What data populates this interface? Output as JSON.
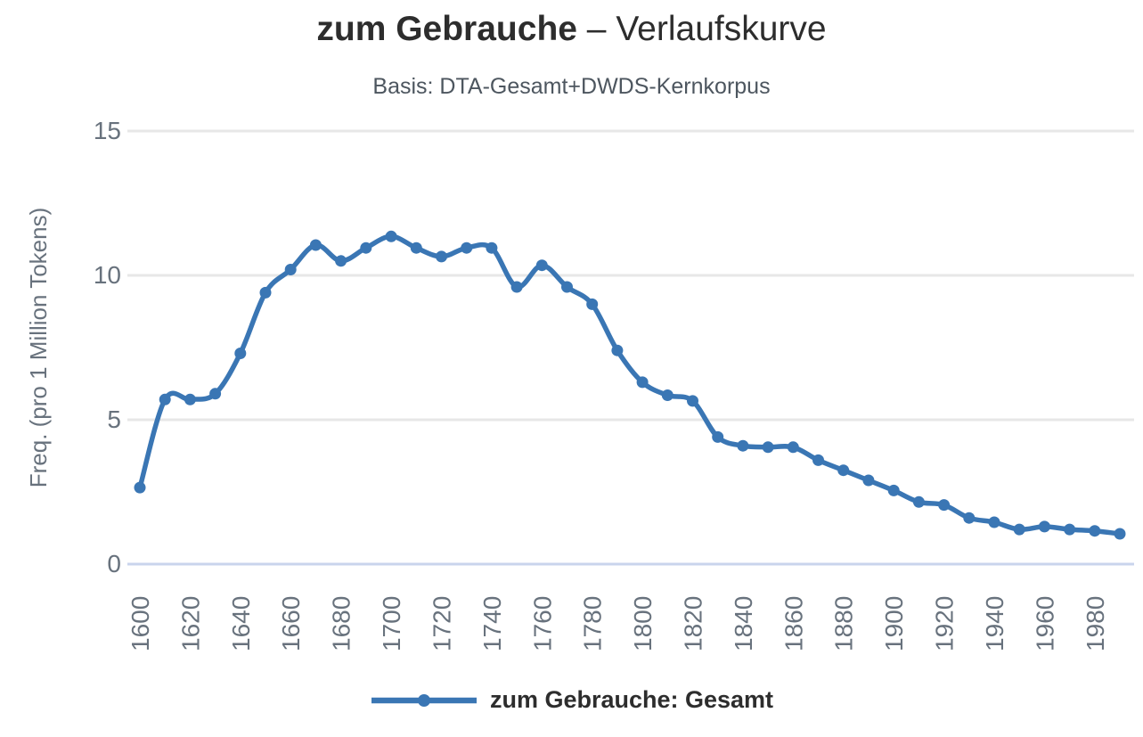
{
  "header": {
    "title_bold": "zum Gebrauche",
    "title_regular": " – Verlaufskurve",
    "subtitle": "Basis: DTA-Gesamt+DWDS-Kernkorpus"
  },
  "legend": {
    "label": "zum Gebrauche: Gesamt"
  },
  "colors": {
    "line": "#3a76b4",
    "grid": "#e7e7e7",
    "axis_line": "#c9d4ec",
    "tick_label": "#68727d",
    "axis_title": "#68727d",
    "title": "#2d2d2d",
    "subtitle": "#4d565f",
    "legend_text": "#2d2d2d"
  },
  "chart_data": {
    "type": "line",
    "title": "zum Gebrauche – Verlaufskurve",
    "subtitle": "Basis: DTA-Gesamt+DWDS-Kernkorpus",
    "xlabel": "",
    "ylabel": "Freq. (pro 1 Million Tokens)",
    "ylim": [
      0,
      15
    ],
    "xlim": [
      1600,
      1990
    ],
    "yticks": [
      0,
      5,
      10,
      15
    ],
    "xticks": [
      1600,
      1620,
      1640,
      1660,
      1680,
      1700,
      1720,
      1740,
      1760,
      1780,
      1800,
      1820,
      1840,
      1860,
      1880,
      1900,
      1920,
      1940,
      1960,
      1980
    ],
    "grid": true,
    "legend_position": "bottom",
    "marker": "circle",
    "smooth": true,
    "series": [
      {
        "name": "zum Gebrauche: Gesamt",
        "x": [
          1600,
          1610,
          1620,
          1630,
          1640,
          1650,
          1660,
          1670,
          1680,
          1690,
          1700,
          1710,
          1720,
          1730,
          1740,
          1750,
          1760,
          1770,
          1780,
          1790,
          1800,
          1810,
          1820,
          1830,
          1840,
          1850,
          1860,
          1870,
          1880,
          1890,
          1900,
          1910,
          1920,
          1930,
          1940,
          1950,
          1960,
          1970,
          1980,
          1990
        ],
        "values": [
          2.65,
          5.7,
          5.7,
          5.9,
          7.3,
          9.4,
          10.2,
          11.05,
          10.5,
          10.95,
          11.35,
          10.95,
          10.65,
          10.95,
          10.95,
          9.6,
          10.35,
          9.6,
          9.0,
          7.4,
          6.3,
          5.85,
          5.65,
          4.4,
          4.1,
          4.05,
          4.05,
          3.6,
          3.25,
          2.9,
          2.55,
          2.15,
          2.05,
          1.6,
          1.45,
          1.2,
          1.3,
          1.2,
          1.15,
          1.05
        ]
      }
    ]
  }
}
